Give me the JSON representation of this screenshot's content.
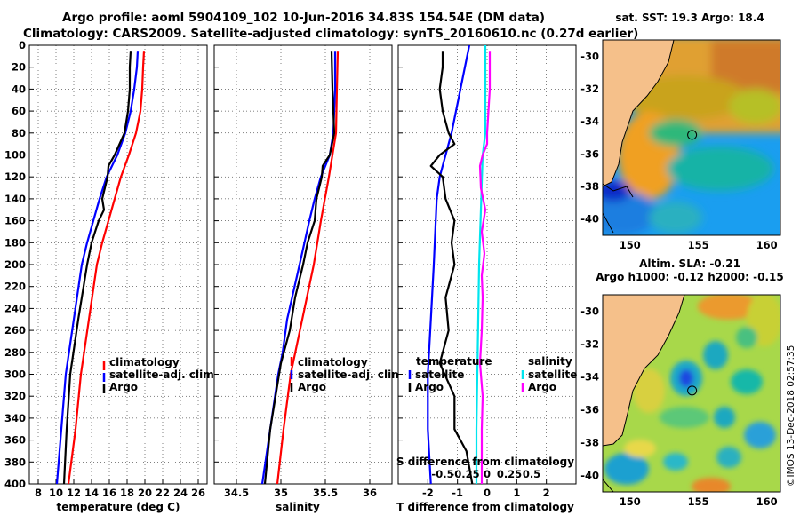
{
  "figure": {
    "title_line1": "Argo profile: aoml 5904109_102 10-Jun-2016 34.83S 154.54E (DM data)",
    "title_line2": "Climatology: CARS2009. Satellite-adjusted climatology: synTS_20160610.nc (0.27d earlier)",
    "credit": "©IMOS 13-Dec-2018 02:57:35",
    "colors": {
      "climatology": "#ff0000",
      "satellite": "#0000ff",
      "argo": "#000000",
      "sal_satellite": "#00e5ee",
      "sal_argo": "#ff00ff",
      "land": "#f5c08a"
    }
  },
  "chart_data": [
    {
      "type": "line",
      "id": "temperature",
      "xlabel": "temperature (deg C)",
      "ylabel": "",
      "xlim": [
        7,
        27
      ],
      "ylim": [
        400,
        0
      ],
      "xticks": [
        "8",
        "10",
        "12",
        "14",
        "16",
        "18",
        "20",
        "22",
        "24",
        "26"
      ],
      "yticks": [
        "0",
        "20",
        "40",
        "60",
        "80",
        "100",
        "120",
        "140",
        "160",
        "180",
        "200",
        "220",
        "240",
        "260",
        "280",
        "300",
        "320",
        "340",
        "360",
        "380",
        "400"
      ],
      "legend": [
        "climatology",
        "satellite-adj. clim.",
        "Argo"
      ],
      "series": [
        {
          "name": "climatology",
          "depth": [
            5,
            20,
            40,
            60,
            80,
            100,
            120,
            140,
            160,
            180,
            200,
            250,
            300,
            350,
            400
          ],
          "values": [
            19.9,
            19.8,
            19.7,
            19.5,
            19.0,
            18.2,
            17.3,
            16.6,
            15.9,
            15.2,
            14.6,
            13.7,
            12.8,
            12.2,
            11.4
          ]
        },
        {
          "name": "satellite-adj. clim.",
          "depth": [
            5,
            20,
            40,
            60,
            80,
            100,
            120,
            140,
            160,
            180,
            200,
            250,
            300,
            350,
            400
          ],
          "values": [
            19.2,
            19.1,
            18.8,
            18.4,
            17.8,
            16.9,
            15.7,
            14.9,
            14.2,
            13.5,
            12.9,
            12.0,
            11.1,
            10.6,
            10.1
          ]
        },
        {
          "name": "Argo",
          "depth": [
            5,
            20,
            40,
            60,
            80,
            100,
            110,
            120,
            140,
            150,
            160,
            180,
            200,
            250,
            300,
            350,
            400
          ],
          "values": [
            18.4,
            18.3,
            18.3,
            18.1,
            17.7,
            16.6,
            15.9,
            15.8,
            15.2,
            15.4,
            14.8,
            14.0,
            13.5,
            12.5,
            11.6,
            11.2,
            10.9
          ]
        }
      ]
    },
    {
      "type": "line",
      "id": "salinity",
      "xlabel": "salinity",
      "ylabel": "",
      "xlim": [
        34.25,
        36.25
      ],
      "ylim": [
        400,
        0
      ],
      "xticks": [
        "34.5",
        "35",
        "35.5",
        "36"
      ],
      "legend": [
        "climatology",
        "satellite-adj. clim.",
        "Argo"
      ],
      "series": [
        {
          "name": "climatology",
          "depth": [
            5,
            40,
            80,
            100,
            120,
            160,
            200,
            250,
            300,
            350,
            400
          ],
          "values": [
            35.64,
            35.63,
            35.62,
            35.58,
            35.54,
            35.45,
            35.37,
            35.24,
            35.11,
            35.03,
            34.96
          ]
        },
        {
          "name": "satellite-adj. clim.",
          "depth": [
            5,
            40,
            80,
            100,
            120,
            140,
            160,
            200,
            250,
            280,
            300,
            350,
            400
          ],
          "values": [
            35.61,
            35.61,
            35.59,
            35.55,
            35.45,
            35.38,
            35.32,
            35.21,
            35.07,
            35.02,
            34.97,
            34.88,
            34.79
          ]
        },
        {
          "name": "Argo",
          "depth": [
            5,
            40,
            80,
            100,
            110,
            120,
            140,
            160,
            180,
            200,
            230,
            260,
            290,
            300,
            350,
            400
          ],
          "values": [
            35.57,
            35.58,
            35.6,
            35.55,
            35.47,
            35.46,
            35.4,
            35.38,
            35.3,
            35.25,
            35.16,
            35.1,
            35.0,
            34.98,
            34.88,
            34.82
          ]
        }
      ]
    },
    {
      "type": "line",
      "id": "difference",
      "xlabel": "T difference from climatology",
      "top_axis_label": "S difference from climatology",
      "xlim": [
        -3,
        3
      ],
      "ylim": [
        400,
        0
      ],
      "xticks": [
        "-2",
        "-1",
        "0",
        "1",
        "2"
      ],
      "top_ticks": [
        "-0.5",
        "-0.25",
        "0",
        "0.25",
        "0.5"
      ],
      "legend_temperature_title": "temperature",
      "legend_salinity_title": "salinity",
      "legend_temperature": [
        "satellite",
        "Argo"
      ],
      "legend_salinity": [
        "satellite",
        "Argo"
      ],
      "series": [
        {
          "name": "temperature satellite",
          "depth": [
            0,
            40,
            80,
            100,
            120,
            140,
            200,
            250,
            300,
            350,
            400
          ],
          "values": [
            -0.6,
            -0.9,
            -1.2,
            -1.4,
            -1.6,
            -1.7,
            -1.8,
            -1.9,
            -2.0,
            -2.0,
            -1.9
          ]
        },
        {
          "name": "temperature Argo",
          "depth": [
            5,
            20,
            40,
            60,
            80,
            90,
            100,
            110,
            120,
            140,
            160,
            180,
            200,
            230,
            260,
            290,
            320,
            350,
            370,
            400
          ],
          "values": [
            -1.5,
            -1.5,
            -1.6,
            -1.5,
            -1.3,
            -1.1,
            -1.6,
            -1.9,
            -1.5,
            -1.4,
            -1.1,
            -1.2,
            -1.1,
            -1.4,
            -1.3,
            -1.6,
            -1.1,
            -1.1,
            -0.7,
            -0.5
          ]
        },
        {
          "name": "salinity satellite",
          "depth": [
            0,
            80,
            100,
            150,
            200,
            250,
            300,
            350,
            400
          ],
          "values": [
            -0.02,
            -0.02,
            -0.05,
            -0.07,
            -0.09,
            -0.1,
            -0.11,
            -0.12,
            -0.12
          ]
        },
        {
          "name": "salinity Argo",
          "depth": [
            5,
            40,
            80,
            90,
            100,
            110,
            130,
            150,
            170,
            190,
            210,
            230,
            260,
            290,
            320,
            350,
            380,
            400
          ],
          "values": [
            0.03,
            0.03,
            0.0,
            0.0,
            -0.05,
            -0.08,
            -0.07,
            -0.02,
            -0.06,
            -0.03,
            -0.06,
            -0.05,
            -0.06,
            -0.08,
            -0.05,
            -0.06,
            -0.06,
            -0.06
          ]
        }
      ]
    },
    {
      "type": "heatmap",
      "id": "sst-map",
      "title": "sat. SST: 19.3 Argo: 18.4",
      "xlim": [
        148,
        161
      ],
      "ylim": [
        -41,
        -29
      ],
      "xticks": [
        "150",
        "155",
        "160"
      ],
      "yticks": [
        "-30",
        "-32",
        "-34",
        "-36",
        "-38",
        "-40"
      ],
      "float_position": {
        "lon": 154.54,
        "lat": -34.83
      }
    },
    {
      "type": "heatmap",
      "id": "sla-map",
      "title_line1": "Altim. SLA: -0.21",
      "title_line2": "Argo h1000: -0.12 h2000: -0.15",
      "xlim": [
        148,
        161
      ],
      "ylim": [
        -41,
        -29
      ],
      "xticks": [
        "150",
        "155",
        "160"
      ],
      "yticks": [
        "-30",
        "-32",
        "-34",
        "-36",
        "-38",
        "-40"
      ],
      "float_position": {
        "lon": 154.54,
        "lat": -34.83
      }
    }
  ]
}
